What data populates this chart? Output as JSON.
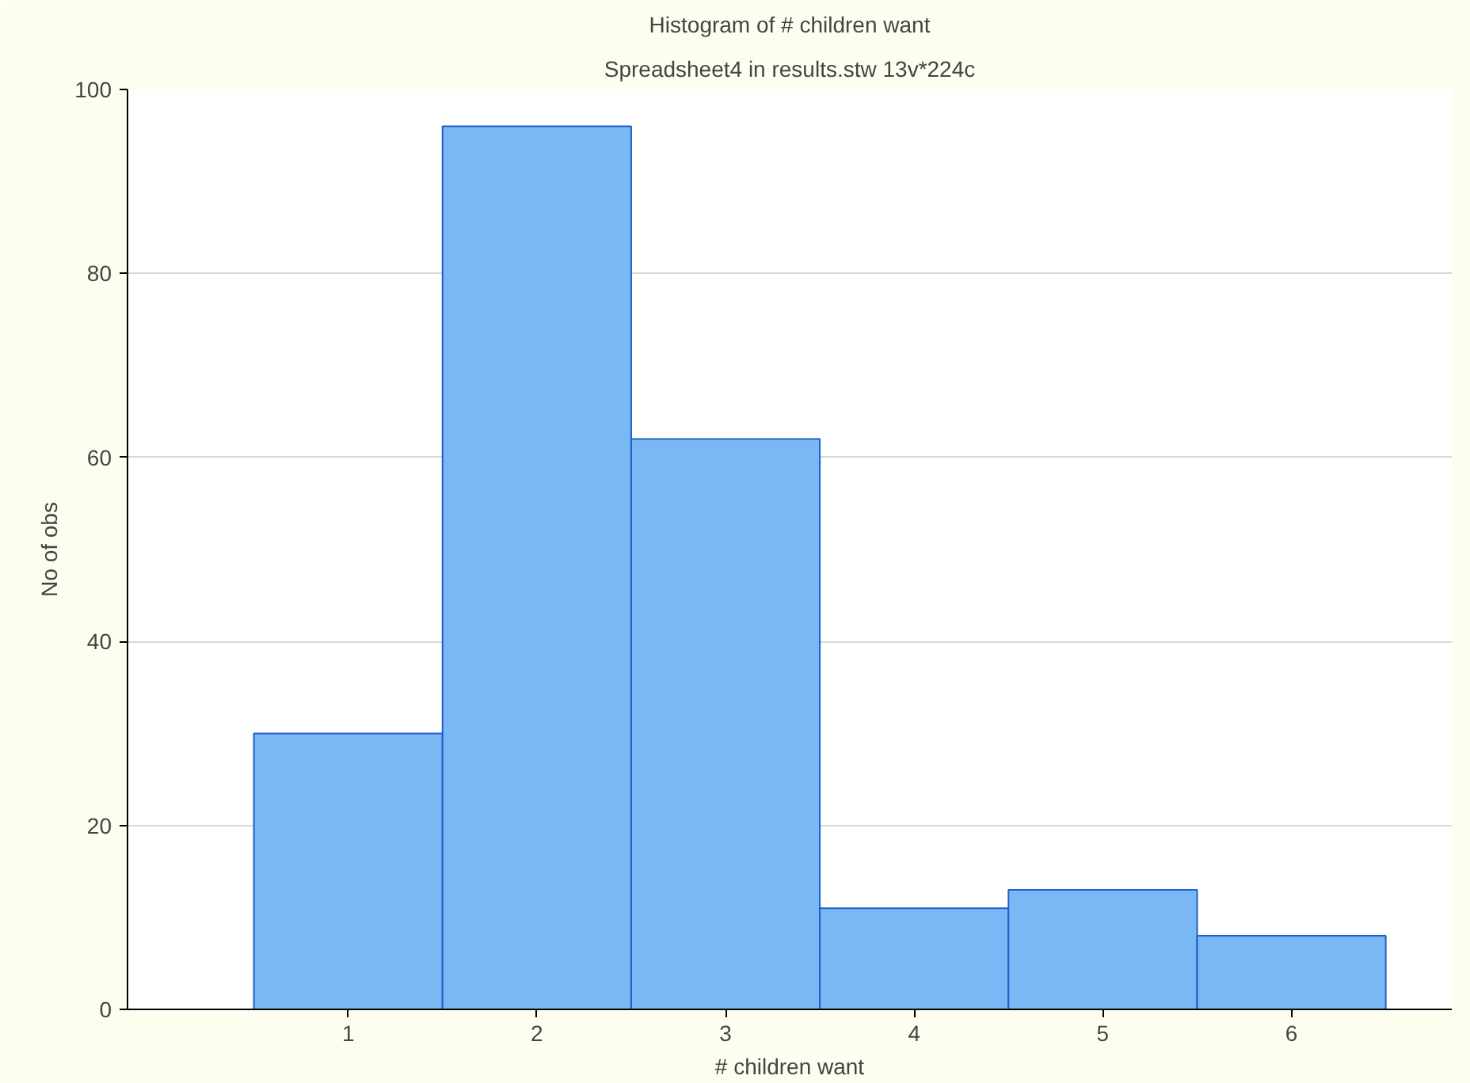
{
  "chart_data": {
    "type": "histogram",
    "title": "Histogram of # children want",
    "subtitle": "Spreadsheet4 in results.stw 13v*224c",
    "xlabel": "# children want",
    "ylabel": "No of obs",
    "bins": [
      0.5,
      1.5,
      2.5,
      3.5,
      4.5,
      5.5,
      6.5
    ],
    "values": [
      30,
      96,
      62,
      11,
      13,
      8
    ],
    "color": "#7ab8f5",
    "xlim": [
      -0.17,
      6.85
    ],
    "xticks": [
      1,
      2,
      3,
      4,
      5,
      6
    ],
    "ylim": [
      0,
      100
    ],
    "yticks": [
      0,
      20,
      40,
      60,
      80,
      100
    ],
    "grid": "y"
  }
}
